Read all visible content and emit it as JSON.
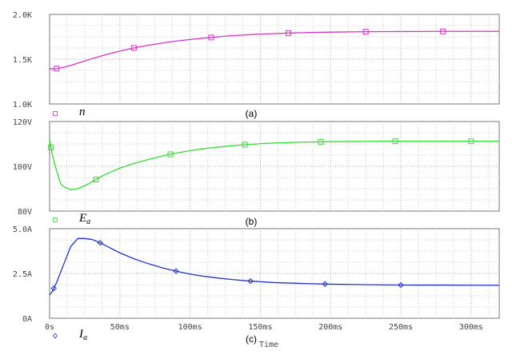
{
  "chart_data": [
    {
      "type": "line",
      "panel_label": "(a)",
      "legend_symbol": "n",
      "legend_sub": "",
      "color": "#d633c8",
      "marker": "square",
      "ylim": [
        1000,
        2000
      ],
      "yticks": [
        1000,
        1500,
        2000
      ],
      "yticklabels": [
        "1.0K",
        "1.5K",
        "2.0K"
      ],
      "xticks_shown": false,
      "series": [
        {
          "x": [
            0,
            5,
            10,
            15,
            20,
            25,
            30,
            40,
            50,
            60,
            70,
            80,
            90,
            100,
            110,
            120,
            130,
            140,
            150,
            160,
            170,
            180,
            200,
            220,
            240,
            260,
            280,
            300,
            320
          ],
          "values": [
            1390,
            1395,
            1410,
            1430,
            1455,
            1480,
            1505,
            1550,
            1590,
            1625,
            1655,
            1680,
            1702,
            1720,
            1735,
            1750,
            1762,
            1772,
            1780,
            1786,
            1792,
            1796,
            1802,
            1806,
            1808,
            1809,
            1810,
            1810,
            1810
          ]
        }
      ],
      "markers_x": [
        5,
        60,
        115,
        170,
        225,
        280
      ]
    },
    {
      "type": "line",
      "panel_label": "(b)",
      "legend_symbol": "E",
      "legend_sub": "a",
      "color": "#33dd33",
      "marker": "square",
      "ylim": [
        80,
        120
      ],
      "yticks": [
        80,
        100,
        120
      ],
      "yticklabels": [
        "80V",
        "100V",
        "120V"
      ],
      "xticks_shown": false,
      "series": [
        {
          "x": [
            0,
            2,
            4,
            6,
            8,
            10,
            15,
            18,
            20,
            25,
            30,
            35,
            40,
            50,
            60,
            70,
            80,
            90,
            100,
            110,
            120,
            130,
            140,
            150,
            160,
            180,
            200,
            220,
            240,
            260,
            280,
            300,
            320
          ],
          "values": [
            112,
            105,
            100,
            96,
            92,
            91,
            89.5,
            89.7,
            90,
            91.3,
            93,
            94.8,
            96.5,
            99.2,
            101.3,
            103,
            104.6,
            105.9,
            107,
            107.9,
            108.6,
            109.2,
            109.7,
            110.1,
            110.4,
            110.8,
            111,
            111.1,
            111.2,
            111.2,
            111.2,
            111.2,
            111.2
          ]
        }
      ],
      "markers_x": [
        1,
        33,
        86,
        139,
        193,
        246,
        300
      ]
    },
    {
      "type": "line",
      "panel_label": "(c)",
      "legend_symbol": "I",
      "legend_sub": "a",
      "color": "#2233cc",
      "marker": "diamond",
      "ylim": [
        0,
        5
      ],
      "yticks": [
        0,
        2.5,
        5
      ],
      "yticklabels": [
        "0A",
        "2.5A",
        "5.0A"
      ],
      "xticks_shown": true,
      "xlim": [
        0,
        320
      ],
      "xticks": [
        0,
        50,
        100,
        150,
        200,
        250,
        300
      ],
      "xticklabels": [
        "0s",
        "50ms",
        "100ms",
        "150ms",
        "200ms",
        "250ms",
        "300ms"
      ],
      "xlabel": "Time",
      "series": [
        {
          "x": [
            0,
            2,
            5,
            10,
            15,
            20,
            25,
            30,
            35,
            40,
            50,
            60,
            70,
            80,
            90,
            100,
            110,
            120,
            130,
            140,
            150,
            160,
            180,
            200,
            220,
            240,
            260,
            280,
            300,
            320
          ],
          "values": [
            1.3,
            1.5,
            2.0,
            3.0,
            4.0,
            4.45,
            4.45,
            4.4,
            4.25,
            4.05,
            3.65,
            3.32,
            3.05,
            2.82,
            2.63,
            2.46,
            2.34,
            2.24,
            2.16,
            2.09,
            2.04,
            1.99,
            1.94,
            1.9,
            1.88,
            1.86,
            1.85,
            1.85,
            1.84,
            1.84
          ]
        }
      ],
      "markers_x": [
        3,
        36,
        90,
        143,
        196,
        250
      ]
    }
  ]
}
